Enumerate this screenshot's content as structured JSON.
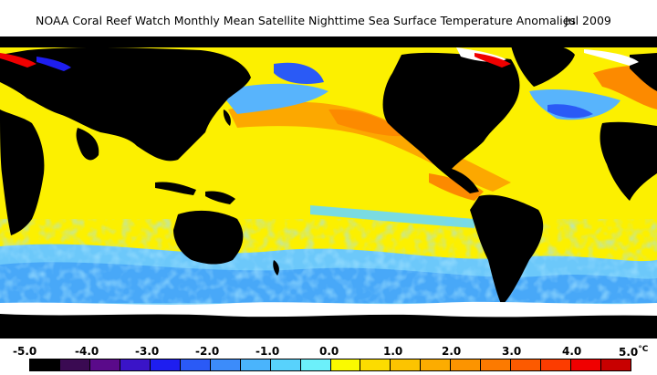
{
  "header": {
    "title": "NOAA Coral Reef Watch Monthly Mean Satellite Nighttime Sea Surface Temperature Anomalies",
    "date": "Jul 2009"
  },
  "legend": {
    "labels": [
      "-5.0",
      "-4.0",
      "-3.0",
      "-2.0",
      "-1.0",
      "0.0",
      "1.0",
      "2.0",
      "3.0",
      "4.0",
      "5.0"
    ],
    "unit": "°C",
    "colors": [
      "#000000",
      "#3a0a52",
      "#5a0a8a",
      "#3a14c8",
      "#1e1ef0",
      "#2a5af6",
      "#3c8cfa",
      "#4ab4fc",
      "#58d2fc",
      "#6cf0fa",
      "#fafa00",
      "#fcdc00",
      "#fcc400",
      "#fcac00",
      "#fc9400",
      "#fc7a00",
      "#fc5a00",
      "#fc3c00",
      "#f00000",
      "#c80000"
    ]
  },
  "map_colors": {
    "land": "#000000",
    "ice": "#ffffff",
    "anomaly_zero": "#fcf000",
    "anomaly_warm": "#fc9400",
    "anomaly_cool": "#58c8fc"
  }
}
